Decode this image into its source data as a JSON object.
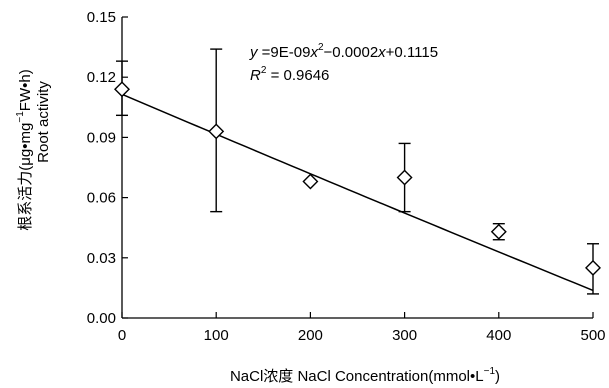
{
  "chart_data": {
    "type": "scatter",
    "title": "",
    "xlabel_prefix": "NaCl浓度 NaCl Concentration(mmol•L",
    "xlabel_sup": "−1",
    "xlabel_suffix": ")",
    "ylabel_cn_prefix": "根系活力(μg•mg",
    "ylabel_cn_sup": "−1",
    "ylabel_cn_suffix": "FW•h)",
    "ylabel_en": "Root activity",
    "xlim": [
      0,
      500
    ],
    "ylim": [
      0,
      0.15
    ],
    "x_ticks": [
      "0",
      "100",
      "200",
      "300",
      "400",
      "500"
    ],
    "y_ticks": [
      "0.00",
      "0.03",
      "0.06",
      "0.09",
      "0.12",
      "0.15"
    ],
    "grid": false,
    "marker": "diamond",
    "points": [
      {
        "x": 0,
        "y": 0.114,
        "err_low": 0.101,
        "err_high": 0.128
      },
      {
        "x": 100,
        "y": 0.093,
        "err_low": 0.053,
        "err_high": 0.134
      },
      {
        "x": 200,
        "y": 0.068
      },
      {
        "x": 300,
        "y": 0.07,
        "err_low": 0.053,
        "err_high": 0.087
      },
      {
        "x": 400,
        "y": 0.043,
        "err_low": 0.039,
        "err_high": 0.047
      },
      {
        "x": 500,
        "y": 0.025,
        "err_low": 0.012,
        "err_high": 0.037
      }
    ],
    "trendline": {
      "a": 9e-09,
      "b": -0.0002,
      "c": 0.1115
    },
    "equation": {
      "y_var": "y",
      "rhs_pre": " =9E-09",
      "x_var": "x",
      "x_sup": "2",
      "rhs_post": "−0.0002",
      "x_var2": "x",
      "rhs_end": "+0.1115",
      "r2_var": "R",
      "r2_sup": "2",
      "r2_value": " = 0.9646"
    }
  }
}
